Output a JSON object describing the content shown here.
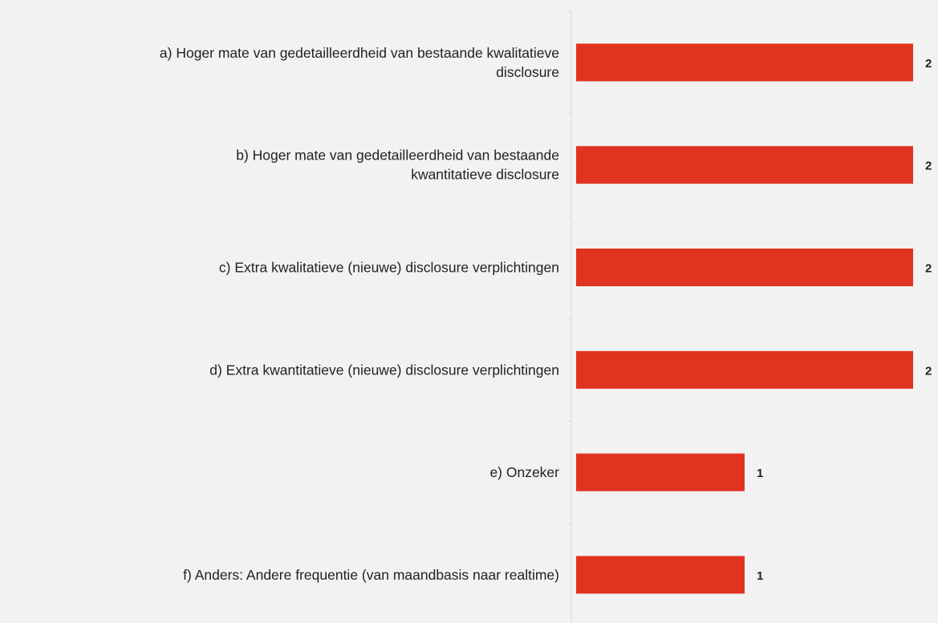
{
  "chart_data": {
    "type": "barh",
    "categories": [
      "a) Hoger mate van gedetailleerdheid van bestaande kwalitatieve\ndisclosure",
      "b) Hoger mate van gedetailleerdheid van bestaande\nkwantitatieve disclosure",
      "c) Extra kwalitatieve (nieuwe) disclosure verplichtingen",
      "d) Extra kwantitatieve (nieuwe) disclosure verplichtingen",
      "e) Onzeker",
      "f) Anders: Andere frequentie (van maandbasis naar realtime)"
    ],
    "values": [
      2,
      2,
      2,
      2,
      1,
      1
    ],
    "color": "#e03421",
    "xlim": [
      0,
      2
    ]
  }
}
